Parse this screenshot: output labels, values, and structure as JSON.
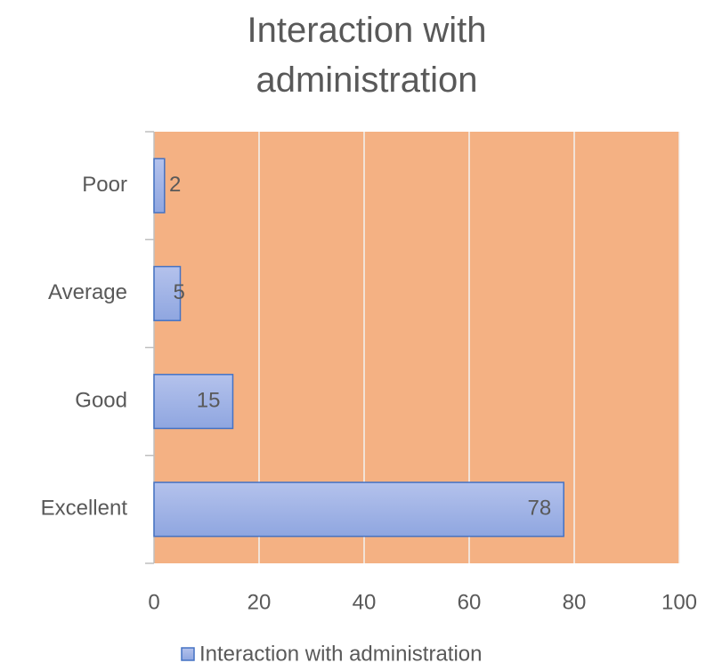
{
  "chart_data": {
    "type": "barh",
    "title": "Interaction with administration",
    "categories": [
      "Excellent",
      "Good",
      "Average",
      "Poor"
    ],
    "series": [
      {
        "name": "Interaction with administration",
        "color": "#8fa6e0",
        "values": [
          78,
          15,
          5,
          2
        ]
      }
    ],
    "xlim": [
      0,
      100
    ],
    "xticks": [
      0,
      20,
      40,
      60,
      80,
      100
    ],
    "grid": true,
    "plot_background": "#f4b183",
    "legend": "bottom"
  }
}
